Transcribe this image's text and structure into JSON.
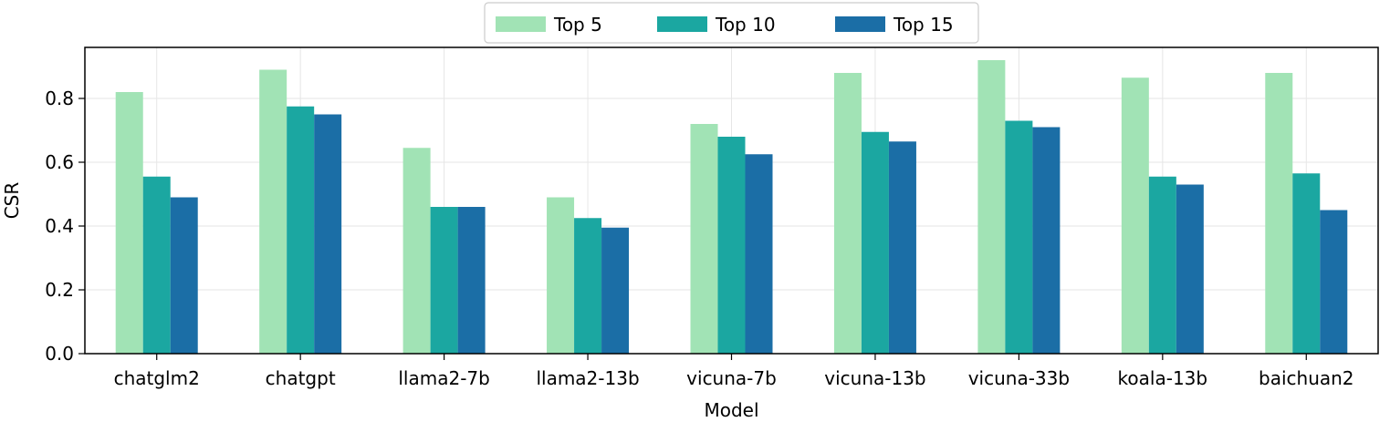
{
  "chart_data": {
    "type": "bar",
    "title": "",
    "xlabel": "Model",
    "ylabel": "CSR",
    "ylim": [
      0,
      0.96
    ],
    "yticks": [
      0.0,
      0.2,
      0.4,
      0.6,
      0.8
    ],
    "ytick_labels": [
      "0.0",
      "0.2",
      "0.4",
      "0.6",
      "0.8"
    ],
    "grid": true,
    "legend_position": "top-center",
    "categories": [
      "chatglm2",
      "chatgpt",
      "llama2-7b",
      "llama2-13b",
      "vicuna-7b",
      "vicuna-13b",
      "vicuna-33b",
      "koala-13b",
      "baichuan2"
    ],
    "series": [
      {
        "name": "Top 5",
        "color": "#a1e3b5",
        "values": [
          0.82,
          0.89,
          0.645,
          0.49,
          0.72,
          0.88,
          0.92,
          0.865,
          0.88
        ]
      },
      {
        "name": "Top 10",
        "color": "#1ba7a1",
        "values": [
          0.555,
          0.775,
          0.46,
          0.425,
          0.68,
          0.695,
          0.73,
          0.555,
          0.565
        ]
      },
      {
        "name": "Top 15",
        "color": "#1b6ea6",
        "values": [
          0.49,
          0.75,
          0.46,
          0.395,
          0.625,
          0.665,
          0.71,
          0.53,
          0.45
        ]
      }
    ]
  }
}
